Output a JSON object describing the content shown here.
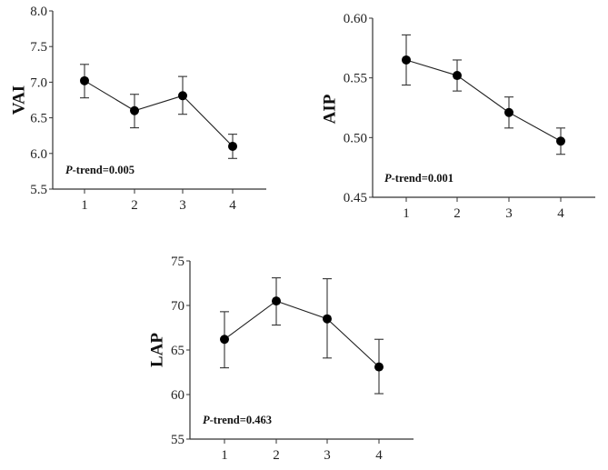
{
  "chart_data": [
    {
      "type": "line",
      "ylabel": "VAI",
      "categories": [
        "1",
        "2",
        "3",
        "4"
      ],
      "values": [
        7.02,
        6.6,
        6.81,
        6.1
      ],
      "error_upper": [
        7.25,
        6.83,
        7.08,
        6.27
      ],
      "error_lower": [
        6.78,
        6.36,
        6.55,
        5.93
      ],
      "ylim": [
        5.5,
        8.0
      ],
      "yticks": [
        "5.5",
        "6.0",
        "6.5",
        "7.0",
        "7.5",
        "8.0"
      ],
      "annotation": {
        "italic": "P",
        "text": "-trend=0.005"
      }
    },
    {
      "type": "line",
      "ylabel": "AIP",
      "categories": [
        "1",
        "2",
        "3",
        "4"
      ],
      "values": [
        0.565,
        0.552,
        0.521,
        0.497
      ],
      "error_upper": [
        0.586,
        0.565,
        0.534,
        0.508
      ],
      "error_lower": [
        0.544,
        0.539,
        0.508,
        0.486
      ],
      "ylim": [
        0.45,
        0.6
      ],
      "yticks": [
        "0.45",
        "0.50",
        "0.55",
        "0.60"
      ],
      "annotation": {
        "italic": "P",
        "text": "-trend=0.001"
      }
    },
    {
      "type": "line",
      "ylabel": "LAP",
      "categories": [
        "1",
        "2",
        "3",
        "4"
      ],
      "values": [
        66.2,
        70.5,
        68.5,
        63.1
      ],
      "error_upper": [
        69.3,
        73.1,
        73.0,
        66.2
      ],
      "error_lower": [
        63.0,
        67.8,
        64.1,
        60.1
      ],
      "ylim": [
        55,
        75
      ],
      "yticks": [
        "55",
        "60",
        "65",
        "70",
        "75"
      ],
      "annotation": {
        "italic": "P",
        "text": "-trend=0.463"
      }
    }
  ]
}
